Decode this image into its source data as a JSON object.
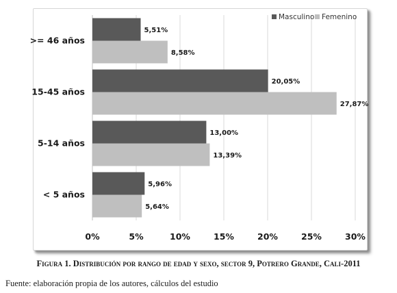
{
  "caption": "Figura 1. Distribución por rango de edad y sexo, sector 9, Potrero Grande, Cali-2011",
  "source": "Fuente: elaboración propia de los autores, cálculos del estudio",
  "colors": {
    "masculino": "#595959",
    "femenino": "#bfbfbf"
  },
  "chart_data": {
    "type": "bar",
    "orientation": "horizontal",
    "title": "",
    "xlabel": "",
    "ylabel": "",
    "categories": [
      ">= 46 años",
      "15-45 años",
      "5-14 años",
      "< 5 años"
    ],
    "series": [
      {
        "name": "Masculino",
        "values": [
          5.51,
          20.05,
          13.0,
          5.96
        ],
        "labels": [
          "5,51%",
          "20,05%",
          "13,00%",
          "5,96%"
        ]
      },
      {
        "name": "Femenino",
        "values": [
          8.58,
          27.87,
          13.39,
          5.64
        ],
        "labels": [
          "8,58%",
          "27,87%",
          "13,39%",
          "5,64%"
        ]
      }
    ],
    "xlim": [
      0,
      30
    ],
    "xticks": [
      "0%",
      "5%",
      "10%",
      "15%",
      "20%",
      "25%",
      "30%"
    ],
    "grid": true,
    "legend_position": "top-right"
  }
}
